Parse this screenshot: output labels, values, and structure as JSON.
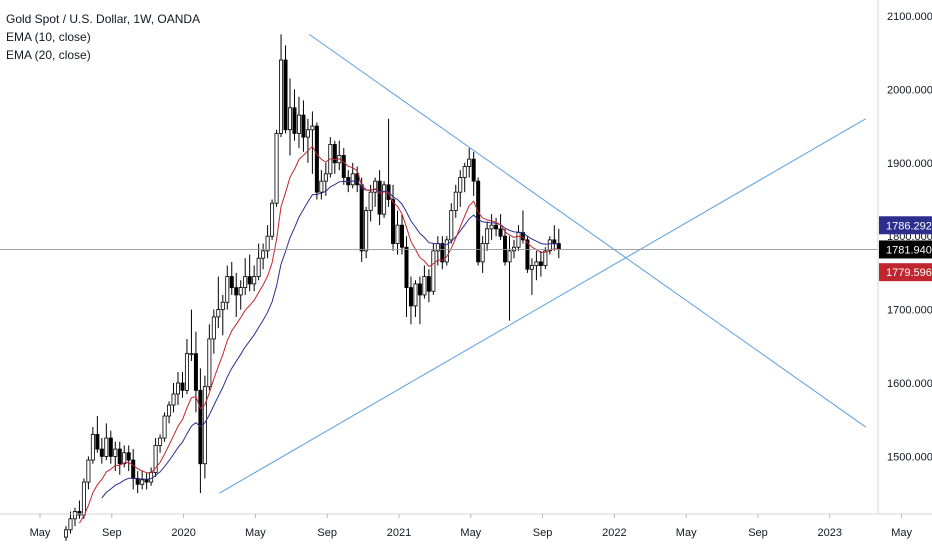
{
  "legend": {
    "title": "Gold Spot / U.S. Dollar, 1W, OANDA",
    "ema10": "EMA (10, close)",
    "ema20": "EMA (20, close)"
  },
  "colors": {
    "up": "#ffffff",
    "down": "#000000",
    "ema10": "#c0262d",
    "ema20": "#2d2f8f",
    "trendline": "#5a9fe0",
    "crosshair": "#9598a1"
  },
  "chart_data": {
    "type": "candlestick",
    "x_tick_labels": [
      "May",
      "Sep",
      "2020",
      "May",
      "Sep",
      "2021",
      "May",
      "Sep",
      "2022",
      "May",
      "Sep",
      "2023",
      "May"
    ],
    "y_tick_labels": [
      "2100.000",
      "2000.000",
      "1900.000",
      "1800.000",
      "1700.000",
      "1600.000",
      "1500.000"
    ],
    "y_ticks": [
      2100,
      2000,
      1900,
      1800,
      1700,
      1600,
      1500
    ],
    "ylim": [
      1415,
      2120
    ],
    "price_tags": [
      {
        "label": "1786.292",
        "value": 1786.292,
        "color": "#2d2f8f"
      },
      {
        "label": "1781.940",
        "value": 1781.94,
        "color": "#000000"
      },
      {
        "label": "1779.596",
        "value": 1779.596,
        "color": "#c0262d"
      }
    ],
    "candles": [
      [
        1390,
        1405,
        1385,
        1400
      ],
      [
        1400,
        1425,
        1395,
        1415
      ],
      [
        1415,
        1430,
        1405,
        1425
      ],
      [
        1425,
        1440,
        1415,
        1420
      ],
      [
        1420,
        1470,
        1415,
        1465
      ],
      [
        1465,
        1500,
        1455,
        1495
      ],
      [
        1495,
        1540,
        1490,
        1530
      ],
      [
        1530,
        1555,
        1505,
        1510
      ],
      [
        1510,
        1525,
        1490,
        1500
      ],
      [
        1500,
        1545,
        1495,
        1525
      ],
      [
        1525,
        1535,
        1490,
        1500
      ],
      [
        1500,
        1520,
        1480,
        1510
      ],
      [
        1510,
        1520,
        1475,
        1490
      ],
      [
        1490,
        1515,
        1485,
        1505
      ],
      [
        1505,
        1515,
        1480,
        1495
      ],
      [
        1495,
        1510,
        1455,
        1470
      ],
      [
        1470,
        1480,
        1450,
        1462
      ],
      [
        1462,
        1480,
        1455,
        1468
      ],
      [
        1468,
        1478,
        1455,
        1465
      ],
      [
        1465,
        1485,
        1460,
        1478
      ],
      [
        1478,
        1525,
        1472,
        1515
      ],
      [
        1515,
        1530,
        1505,
        1525
      ],
      [
        1525,
        1560,
        1520,
        1555
      ],
      [
        1555,
        1575,
        1545,
        1570
      ],
      [
        1570,
        1600,
        1560,
        1585
      ],
      [
        1585,
        1615,
        1570,
        1600
      ],
      [
        1600,
        1615,
        1580,
        1590
      ],
      [
        1590,
        1660,
        1585,
        1640
      ],
      [
        1640,
        1700,
        1630,
        1640
      ],
      [
        1640,
        1670,
        1560,
        1590
      ],
      [
        1590,
        1620,
        1450,
        1490
      ],
      [
        1490,
        1610,
        1470,
        1595
      ],
      [
        1595,
        1680,
        1590,
        1660
      ],
      [
        1660,
        1700,
        1640,
        1690
      ],
      [
        1690,
        1745,
        1675,
        1700
      ],
      [
        1700,
        1720,
        1665,
        1710
      ],
      [
        1710,
        1760,
        1700,
        1745
      ],
      [
        1745,
        1765,
        1720,
        1730
      ],
      [
        1730,
        1750,
        1690,
        1720
      ],
      [
        1720,
        1740,
        1700,
        1730
      ],
      [
        1730,
        1770,
        1720,
        1745
      ],
      [
        1745,
        1775,
        1725,
        1735
      ],
      [
        1735,
        1760,
        1725,
        1745
      ],
      [
        1745,
        1790,
        1740,
        1770
      ],
      [
        1770,
        1790,
        1755,
        1780
      ],
      [
        1780,
        1815,
        1770,
        1800
      ],
      [
        1800,
        1850,
        1795,
        1845
      ],
      [
        1845,
        1945,
        1840,
        1940
      ],
      [
        1940,
        2075,
        1935,
        2040
      ],
      [
        2040,
        2060,
        1940,
        1945
      ],
      [
        1945,
        2015,
        1910,
        1975
      ],
      [
        1975,
        2000,
        1930,
        1940
      ],
      [
        1940,
        1990,
        1920,
        1965
      ],
      [
        1965,
        1985,
        1915,
        1935
      ],
      [
        1935,
        1960,
        1900,
        1945
      ],
      [
        1945,
        1970,
        1885,
        1950
      ],
      [
        1950,
        1955,
        1850,
        1860
      ],
      [
        1860,
        1890,
        1850,
        1875
      ],
      [
        1875,
        1900,
        1855,
        1885
      ],
      [
        1885,
        1935,
        1880,
        1925
      ],
      [
        1925,
        1930,
        1885,
        1900
      ],
      [
        1900,
        1930,
        1890,
        1910
      ],
      [
        1910,
        1920,
        1870,
        1880
      ],
      [
        1880,
        1890,
        1860,
        1870
      ],
      [
        1870,
        1900,
        1865,
        1885
      ],
      [
        1885,
        1895,
        1860,
        1870
      ],
      [
        1870,
        1880,
        1765,
        1780
      ],
      [
        1780,
        1840,
        1770,
        1835
      ],
      [
        1835,
        1870,
        1820,
        1860
      ],
      [
        1860,
        1880,
        1840,
        1875
      ],
      [
        1875,
        1890,
        1815,
        1830
      ],
      [
        1830,
        1875,
        1825,
        1870
      ],
      [
        1870,
        1960,
        1840,
        1850
      ],
      [
        1850,
        1870,
        1780,
        1790
      ],
      [
        1790,
        1835,
        1775,
        1815
      ],
      [
        1815,
        1830,
        1775,
        1785
      ],
      [
        1785,
        1800,
        1690,
        1730
      ],
      [
        1730,
        1745,
        1680,
        1705
      ],
      [
        1705,
        1740,
        1690,
        1735
      ],
      [
        1735,
        1745,
        1680,
        1720
      ],
      [
        1720,
        1760,
        1715,
        1745
      ],
      [
        1745,
        1755,
        1710,
        1725
      ],
      [
        1725,
        1790,
        1720,
        1780
      ],
      [
        1780,
        1800,
        1760,
        1790
      ],
      [
        1790,
        1800,
        1755,
        1765
      ],
      [
        1765,
        1800,
        1760,
        1795
      ],
      [
        1795,
        1845,
        1790,
        1835
      ],
      [
        1835,
        1870,
        1825,
        1860
      ],
      [
        1860,
        1890,
        1840,
        1880
      ],
      [
        1880,
        1900,
        1860,
        1895
      ],
      [
        1895,
        1920,
        1880,
        1905
      ],
      [
        1905,
        1915,
        1855,
        1875
      ],
      [
        1875,
        1880,
        1760,
        1765
      ],
      [
        1765,
        1800,
        1750,
        1790
      ],
      [
        1790,
        1820,
        1780,
        1810
      ],
      [
        1810,
        1830,
        1795,
        1815
      ],
      [
        1815,
        1825,
        1800,
        1810
      ],
      [
        1810,
        1830,
        1795,
        1800
      ],
      [
        1800,
        1810,
        1760,
        1765
      ],
      [
        1765,
        1800,
        1685,
        1780
      ],
      [
        1780,
        1795,
        1770,
        1785
      ],
      [
        1785,
        1815,
        1780,
        1805
      ],
      [
        1805,
        1835,
        1790,
        1795
      ],
      [
        1795,
        1800,
        1750,
        1755
      ],
      [
        1755,
        1770,
        1720,
        1760
      ],
      [
        1760,
        1780,
        1740,
        1765
      ],
      [
        1765,
        1780,
        1745,
        1760
      ],
      [
        1760,
        1785,
        1755,
        1780
      ],
      [
        1780,
        1800,
        1775,
        1795
      ],
      [
        1795,
        1815,
        1780,
        1790
      ],
      [
        1790,
        1810,
        1770,
        1782
      ]
    ],
    "trendlines": [
      {
        "name": "upper",
        "from": {
          "x": "2020-08",
          "y": 2075
        },
        "to": {
          "x": "2023-03",
          "y": 1540
        }
      },
      {
        "name": "lower",
        "from": {
          "x": "2020-03",
          "y": 1450
        },
        "to": {
          "x": "2023-03",
          "y": 1960
        }
      }
    ]
  }
}
